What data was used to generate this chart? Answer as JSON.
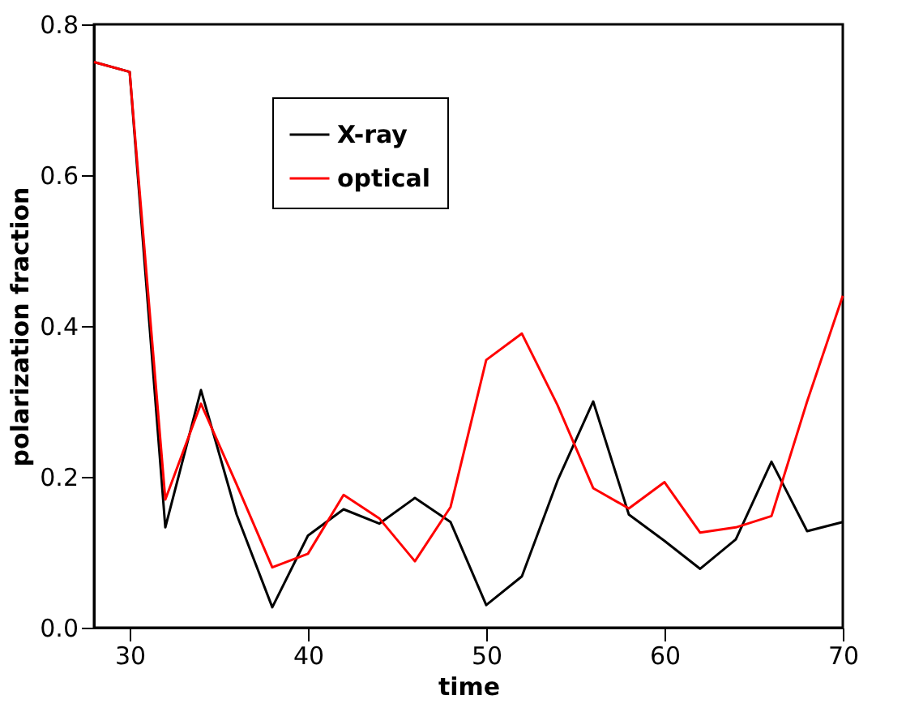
{
  "chart_data": {
    "type": "line",
    "xlabel": "time",
    "ylabel": "polarization fraction",
    "x": [
      28,
      30,
      32,
      34,
      36,
      38,
      40,
      42,
      44,
      46,
      48,
      50,
      52,
      54,
      56,
      58,
      60,
      62,
      64,
      66,
      68,
      70
    ],
    "series": [
      {
        "name": "X-ray",
        "color": "#000000",
        "values": [
          0.75,
          0.737,
          0.133,
          0.315,
          0.15,
          0.027,
          0.122,
          0.157,
          0.138,
          0.172,
          0.14,
          0.03,
          0.068,
          0.195,
          0.3,
          0.15,
          0.115,
          0.078,
          0.117,
          0.22,
          0.128,
          0.14
        ]
      },
      {
        "name": "optical",
        "color": "#ff0000",
        "values": [
          0.75,
          0.737,
          0.17,
          0.297,
          0.19,
          0.08,
          0.098,
          0.176,
          0.145,
          0.088,
          0.16,
          0.355,
          0.39,
          0.295,
          0.185,
          0.158,
          0.193,
          0.126,
          0.133,
          0.148,
          0.3,
          0.44
        ]
      }
    ],
    "xlim": [
      28,
      70
    ],
    "xticks": [
      30,
      40,
      50,
      60,
      70
    ],
    "ylim": [
      0,
      0.8
    ],
    "yticks": [
      {
        "value": 0,
        "label": "0.0"
      },
      0.2,
      0.4,
      0.6,
      0.8
    ],
    "grid": false,
    "legend": "top",
    "marker": "none",
    "line_style": "solid"
  }
}
